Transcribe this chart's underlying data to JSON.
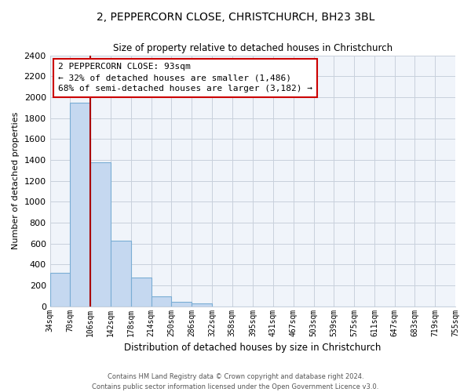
{
  "title": "2, PEPPERCORN CLOSE, CHRISTCHURCH, BH23 3BL",
  "subtitle": "Size of property relative to detached houses in Christchurch",
  "xlabel": "Distribution of detached houses by size in Christchurch",
  "ylabel": "Number of detached properties",
  "bin_labels": [
    "34sqm",
    "70sqm",
    "106sqm",
    "142sqm",
    "178sqm",
    "214sqm",
    "250sqm",
    "286sqm",
    "322sqm",
    "358sqm",
    "395sqm",
    "431sqm",
    "467sqm",
    "503sqm",
    "539sqm",
    "575sqm",
    "611sqm",
    "647sqm",
    "683sqm",
    "719sqm",
    "755sqm"
  ],
  "bar_values": [
    320,
    1950,
    1380,
    630,
    275,
    95,
    45,
    25,
    0,
    0,
    0,
    0,
    0,
    0,
    0,
    0,
    0,
    0,
    0,
    0
  ],
  "bar_color": "#c5d8f0",
  "bar_edge_color": "#7aadd4",
  "ylim": [
    0,
    2400
  ],
  "yticks": [
    0,
    200,
    400,
    600,
    800,
    1000,
    1200,
    1400,
    1600,
    1800,
    2000,
    2200,
    2400
  ],
  "property_line_color": "#aa0000",
  "annotation_title": "2 PEPPERCORN CLOSE: 93sqm",
  "annotation_line1": "← 32% of detached houses are smaller (1,486)",
  "annotation_line2": "68% of semi-detached houses are larger (3,182) →",
  "footer_line1": "Contains HM Land Registry data © Crown copyright and database right 2024.",
  "footer_line2": "Contains public sector information licensed under the Open Government Licence v3.0.",
  "background_color": "#ffffff",
  "plot_bg_color": "#f0f4fa",
  "grid_color": "#c8d0dc",
  "bin_edges": [
    34,
    70,
    106,
    142,
    178,
    214,
    250,
    286,
    322,
    358,
    395,
    431,
    467,
    503,
    539,
    575,
    611,
    647,
    683,
    719,
    755
  ]
}
